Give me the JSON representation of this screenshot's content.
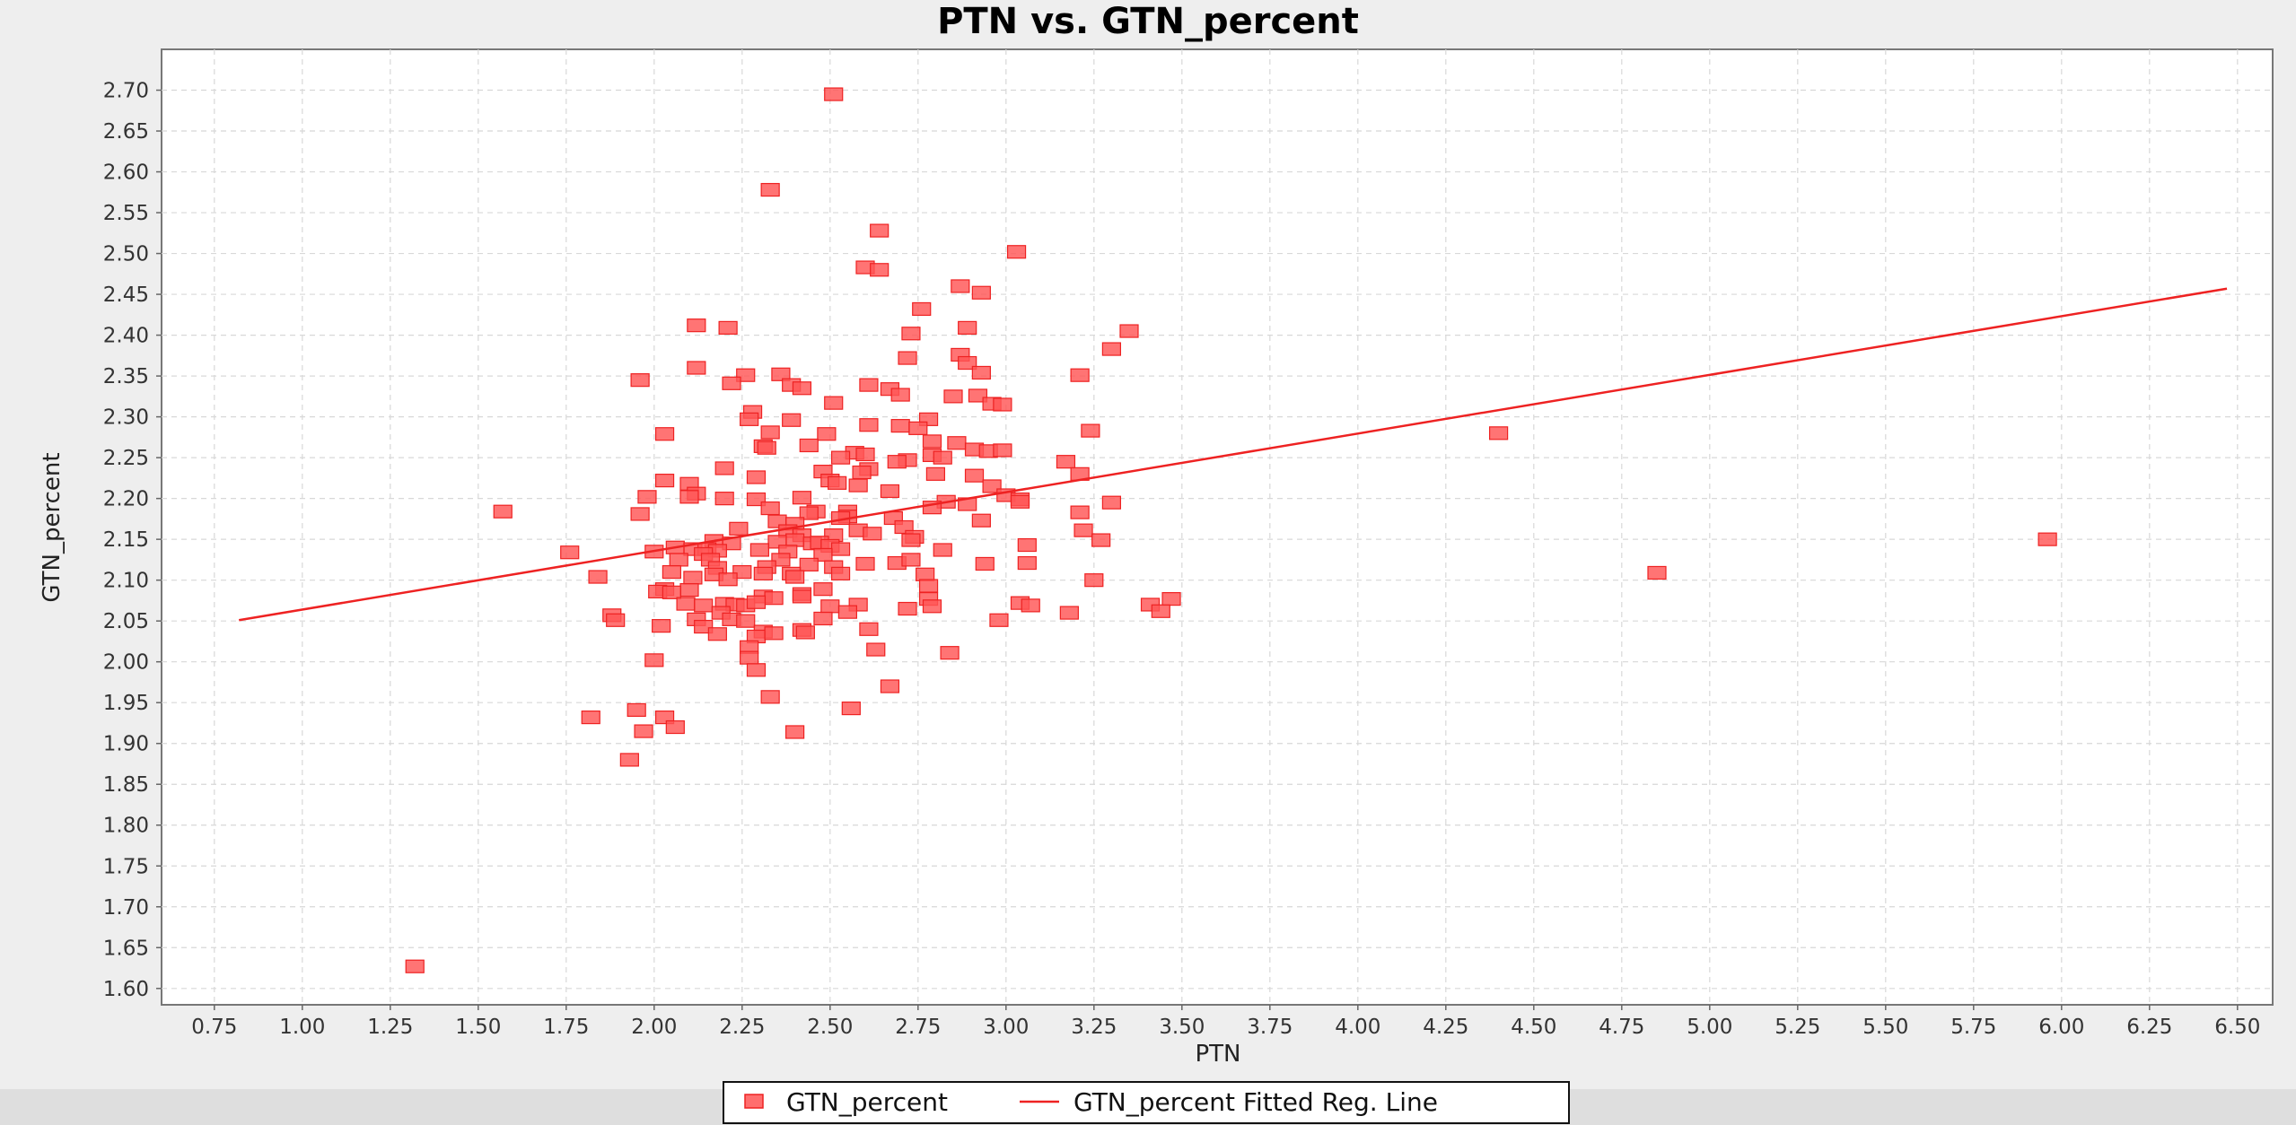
{
  "chart_data": {
    "type": "scatter",
    "title": "PTN vs. GTN_percent",
    "xlabel": "PTN",
    "ylabel": "GTN_percent",
    "xlim": [
      0.6,
      6.6
    ],
    "ylim": [
      1.58,
      2.75
    ],
    "x_ticks": [
      "0.75",
      "1.00",
      "1.25",
      "1.50",
      "1.75",
      "2.00",
      "2.25",
      "2.50",
      "2.75",
      "3.00",
      "3.25",
      "3.50",
      "3.75",
      "4.00",
      "4.25",
      "4.50",
      "4.75",
      "5.00",
      "5.25",
      "5.50",
      "5.75",
      "6.00",
      "6.25",
      "6.50"
    ],
    "y_ticks": [
      "1.60",
      "1.65",
      "1.70",
      "1.75",
      "1.80",
      "1.85",
      "1.90",
      "1.95",
      "2.00",
      "2.05",
      "2.10",
      "2.15",
      "2.20",
      "2.25",
      "2.30",
      "2.35",
      "2.40",
      "2.45",
      "2.50",
      "2.55",
      "2.60",
      "2.65",
      "2.70"
    ],
    "grid": true,
    "legend_position": "bottom",
    "colors": {
      "points": "#ff5555",
      "line": "#ee2222"
    },
    "series": [
      {
        "name": "GTN_percent",
        "kind": "scatter",
        "points": [
          [
            2.51,
            2.695
          ],
          [
            2.33,
            2.578
          ],
          [
            2.64,
            2.528
          ],
          [
            3.03,
            2.502
          ],
          [
            2.6,
            2.483
          ],
          [
            2.64,
            2.48
          ],
          [
            2.87,
            2.46
          ],
          [
            2.93,
            2.452
          ],
          [
            2.76,
            2.432
          ],
          [
            2.12,
            2.412
          ],
          [
            2.21,
            2.409
          ],
          [
            2.89,
            2.409
          ],
          [
            3.35,
            2.405
          ],
          [
            2.73,
            2.402
          ],
          [
            3.3,
            2.383
          ],
          [
            2.87,
            2.376
          ],
          [
            2.72,
            2.372
          ],
          [
            2.89,
            2.366
          ],
          [
            2.12,
            2.36
          ],
          [
            2.36,
            2.352
          ],
          [
            2.26,
            2.351
          ],
          [
            2.93,
            2.354
          ],
          [
            3.21,
            2.351
          ],
          [
            1.96,
            2.345
          ],
          [
            2.22,
            2.341
          ],
          [
            2.39,
            2.339
          ],
          [
            2.42,
            2.335
          ],
          [
            2.61,
            2.339
          ],
          [
            2.67,
            2.334
          ],
          [
            2.7,
            2.327
          ],
          [
            2.85,
            2.325
          ],
          [
            2.92,
            2.326
          ],
          [
            2.96,
            2.316
          ],
          [
            2.99,
            2.315
          ],
          [
            2.51,
            2.317
          ],
          [
            2.28,
            2.306
          ],
          [
            2.27,
            2.297
          ],
          [
            2.39,
            2.296
          ],
          [
            2.61,
            2.29
          ],
          [
            2.7,
            2.289
          ],
          [
            2.78,
            2.297
          ],
          [
            2.75,
            2.286
          ],
          [
            2.33,
            2.281
          ],
          [
            2.49,
            2.279
          ],
          [
            2.03,
            2.279
          ],
          [
            3.24,
            2.283
          ],
          [
            2.31,
            2.264
          ],
          [
            2.32,
            2.262
          ],
          [
            2.44,
            2.265
          ],
          [
            2.79,
            2.27
          ],
          [
            2.86,
            2.268
          ],
          [
            2.91,
            2.26
          ],
          [
            2.95,
            2.258
          ],
          [
            2.99,
            2.259
          ],
          [
            2.57,
            2.256
          ],
          [
            2.6,
            2.254
          ],
          [
            2.53,
            2.25
          ],
          [
            2.79,
            2.253
          ],
          [
            2.82,
            2.25
          ],
          [
            3.17,
            2.245
          ],
          [
            2.72,
            2.247
          ],
          [
            2.69,
            2.245
          ],
          [
            2.2,
            2.237
          ],
          [
            2.48,
            2.233
          ],
          [
            2.61,
            2.236
          ],
          [
            2.59,
            2.232
          ],
          [
            2.8,
            2.23
          ],
          [
            2.91,
            2.228
          ],
          [
            2.29,
            2.226
          ],
          [
            2.03,
            2.222
          ],
          [
            2.5,
            2.222
          ],
          [
            2.52,
            2.219
          ],
          [
            2.1,
            2.218
          ],
          [
            2.58,
            2.216
          ],
          [
            2.96,
            2.215
          ],
          [
            3.21,
            2.23
          ],
          [
            2.67,
            2.209
          ],
          [
            2.12,
            2.206
          ],
          [
            2.1,
            2.202
          ],
          [
            1.98,
            2.202
          ],
          [
            2.2,
            2.2
          ],
          [
            2.29,
            2.199
          ],
          [
            2.42,
            2.201
          ],
          [
            2.89,
            2.193
          ],
          [
            2.83,
            2.196
          ],
          [
            3.0,
            2.204
          ],
          [
            3.04,
            2.199
          ],
          [
            3.04,
            2.196
          ],
          [
            3.3,
            2.195
          ],
          [
            2.79,
            2.189
          ],
          [
            2.46,
            2.184
          ],
          [
            2.33,
            2.188
          ],
          [
            2.44,
            2.182
          ],
          [
            2.55,
            2.184
          ],
          [
            1.96,
            2.181
          ],
          [
            2.55,
            2.178
          ],
          [
            2.53,
            2.176
          ],
          [
            2.68,
            2.176
          ],
          [
            2.93,
            2.173
          ],
          [
            3.21,
            2.183
          ],
          [
            2.35,
            2.172
          ],
          [
            2.4,
            2.169
          ],
          [
            2.24,
            2.163
          ],
          [
            2.38,
            2.16
          ],
          [
            2.58,
            2.161
          ],
          [
            2.42,
            2.155
          ],
          [
            2.51,
            2.155
          ],
          [
            2.62,
            2.157
          ],
          [
            2.71,
            2.165
          ],
          [
            2.74,
            2.153
          ],
          [
            2.73,
            2.149
          ],
          [
            2.4,
            2.149
          ],
          [
            2.35,
            2.147
          ],
          [
            2.45,
            2.145
          ],
          [
            2.47,
            2.146
          ],
          [
            2.17,
            2.148
          ],
          [
            2.22,
            2.145
          ],
          [
            2.5,
            2.142
          ],
          [
            3.22,
            2.161
          ],
          [
            3.27,
            2.149
          ],
          [
            2.06,
            2.14
          ],
          [
            2.11,
            2.138
          ],
          [
            2.15,
            2.138
          ],
          [
            2.18,
            2.136
          ],
          [
            2.3,
            2.137
          ],
          [
            2.38,
            2.135
          ],
          [
            2.53,
            2.138
          ],
          [
            2.82,
            2.137
          ],
          [
            3.06,
            2.143
          ],
          [
            1.76,
            2.134
          ],
          [
            2.0,
            2.135
          ],
          [
            2.14,
            2.132
          ],
          [
            2.48,
            2.131
          ],
          [
            2.36,
            2.125
          ],
          [
            2.16,
            2.125
          ],
          [
            2.07,
            2.125
          ],
          [
            2.6,
            2.12
          ],
          [
            2.69,
            2.121
          ],
          [
            2.73,
            2.125
          ],
          [
            2.94,
            2.12
          ],
          [
            3.06,
            2.121
          ],
          [
            2.18,
            2.115
          ],
          [
            2.32,
            2.116
          ],
          [
            2.44,
            2.119
          ],
          [
            2.51,
            2.116
          ],
          [
            2.05,
            2.11
          ],
          [
            2.17,
            2.107
          ],
          [
            2.25,
            2.11
          ],
          [
            2.31,
            2.108
          ],
          [
            2.39,
            2.108
          ],
          [
            2.53,
            2.108
          ],
          [
            2.77,
            2.107
          ],
          [
            1.84,
            2.104
          ],
          [
            2.11,
            2.103
          ],
          [
            2.21,
            2.101
          ],
          [
            2.4,
            2.104
          ],
          [
            3.25,
            2.1
          ],
          [
            2.78,
            2.093
          ],
          [
            2.03,
            2.089
          ],
          [
            2.1,
            2.088
          ],
          [
            2.48,
            2.089
          ],
          [
            2.01,
            2.086
          ],
          [
            2.05,
            2.085
          ],
          [
            2.31,
            2.08
          ],
          [
            2.34,
            2.078
          ],
          [
            2.42,
            2.083
          ],
          [
            2.42,
            2.08
          ],
          [
            2.78,
            2.077
          ],
          [
            3.47,
            2.077
          ],
          [
            2.09,
            2.071
          ],
          [
            2.14,
            2.069
          ],
          [
            2.2,
            2.071
          ],
          [
            2.23,
            2.07
          ],
          [
            2.26,
            2.069
          ],
          [
            2.29,
            2.073
          ],
          [
            2.58,
            2.07
          ],
          [
            2.79,
            2.068
          ],
          [
            3.04,
            2.072
          ],
          [
            3.07,
            2.069
          ],
          [
            2.5,
            2.068
          ],
          [
            3.41,
            2.07
          ],
          [
            2.72,
            2.065
          ],
          [
            1.88,
            2.057
          ],
          [
            2.19,
            2.06
          ],
          [
            2.48,
            2.053
          ],
          [
            2.55,
            2.061
          ],
          [
            3.18,
            2.06
          ],
          [
            3.44,
            2.062
          ],
          [
            1.89,
            2.051
          ],
          [
            2.12,
            2.052
          ],
          [
            2.22,
            2.052
          ],
          [
            2.26,
            2.05
          ],
          [
            2.98,
            2.051
          ],
          [
            2.02,
            2.044
          ],
          [
            2.14,
            2.043
          ],
          [
            2.31,
            2.037
          ],
          [
            2.42,
            2.039
          ],
          [
            2.43,
            2.036
          ],
          [
            2.61,
            2.04
          ],
          [
            2.18,
            2.034
          ],
          [
            2.29,
            2.031
          ],
          [
            2.34,
            2.035
          ],
          [
            2.27,
            2.018
          ],
          [
            2.63,
            2.015
          ],
          [
            2.84,
            2.011
          ],
          [
            2.27,
            2.005
          ],
          [
            2.0,
            2.002
          ],
          [
            2.29,
            1.99
          ],
          [
            2.67,
            1.97
          ],
          [
            2.33,
            1.957
          ],
          [
            2.56,
            1.943
          ],
          [
            1.95,
            1.941
          ],
          [
            2.03,
            1.932
          ],
          [
            1.82,
            1.932
          ],
          [
            2.06,
            1.92
          ],
          [
            1.97,
            1.915
          ],
          [
            2.4,
            1.914
          ],
          [
            1.93,
            1.88
          ],
          [
            1.57,
            2.184
          ],
          [
            1.32,
            1.627
          ],
          [
            4.4,
            2.28
          ],
          [
            4.85,
            2.109
          ],
          [
            5.96,
            2.15
          ]
        ]
      },
      {
        "name": "GTN_percent Fitted Reg. Line",
        "kind": "line",
        "points": [
          [
            0.82,
            2.051
          ],
          [
            6.47,
            2.457
          ]
        ]
      }
    ]
  }
}
